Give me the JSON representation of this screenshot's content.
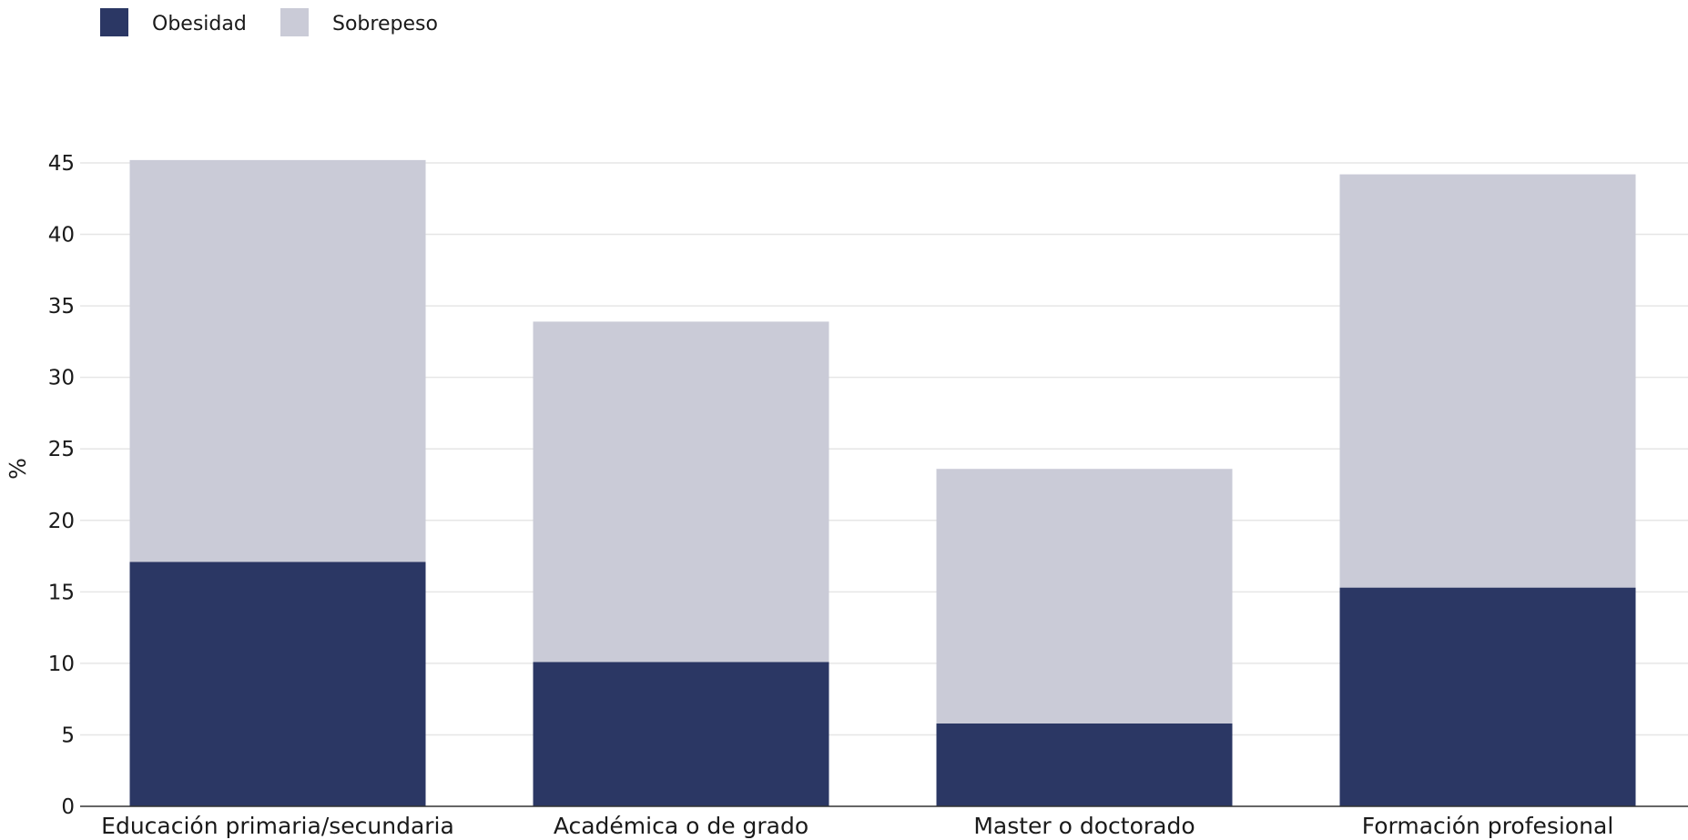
{
  "chart_data": {
    "type": "bar",
    "stacked": true,
    "ylabel": "%",
    "ylim": [
      0,
      45
    ],
    "yticks": [
      0,
      5,
      10,
      15,
      20,
      25,
      30,
      35,
      40,
      45
    ],
    "grid": true,
    "legend_position": "top-left",
    "categories": [
      "Educación primaria/secundaria",
      "Académica o de grado",
      "Master o doctorado",
      "Formación profesional"
    ],
    "series": [
      {
        "name": "Obesidad",
        "color": "#2b3764",
        "values": [
          17.1,
          10.1,
          5.8,
          15.3
        ]
      },
      {
        "name": "Sobrepeso",
        "color": "#cacbd7",
        "values": [
          28.1,
          23.8,
          17.8,
          28.9
        ]
      }
    ]
  }
}
